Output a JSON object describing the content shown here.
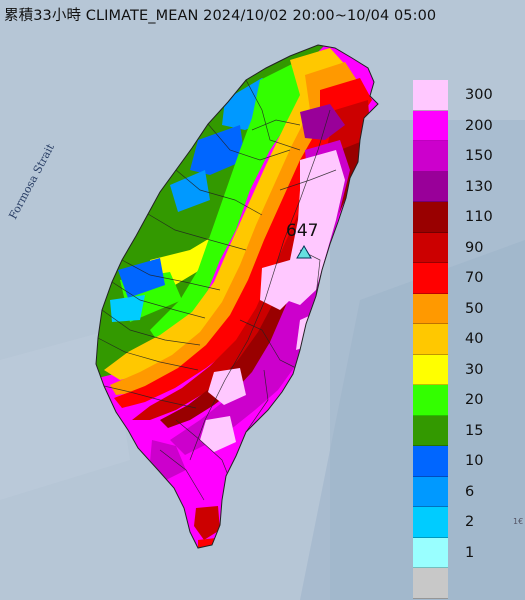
{
  "title": "累積33小時 CLIMATE_MEAN 2024/10/02 20:00~10/04 05:00",
  "strait_label": "Formosa Strait",
  "peak_value": "647",
  "corner_label": "1€",
  "legend": [
    {
      "label": "300",
      "color": "#ffc8ff"
    },
    {
      "label": "200",
      "color": "#ff00ff"
    },
    {
      "label": "150",
      "color": "#cc00cc"
    },
    {
      "label": "130",
      "color": "#990099"
    },
    {
      "label": "110",
      "color": "#990000"
    },
    {
      "label": "90",
      "color": "#cc0000"
    },
    {
      "label": "70",
      "color": "#ff0000"
    },
    {
      "label": "50",
      "color": "#ff9900"
    },
    {
      "label": "40",
      "color": "#ffc800"
    },
    {
      "label": "30",
      "color": "#ffff00"
    },
    {
      "label": "20",
      "color": "#33ff00"
    },
    {
      "label": "15",
      "color": "#339900"
    },
    {
      "label": "10",
      "color": "#0066ff"
    },
    {
      "label": "6",
      "color": "#0099ff"
    },
    {
      "label": "2",
      "color": "#00ccff"
    },
    {
      "label": "1",
      "color": "#99ffff"
    },
    {
      "label": "",
      "color": "#c8c8c8"
    }
  ]
}
